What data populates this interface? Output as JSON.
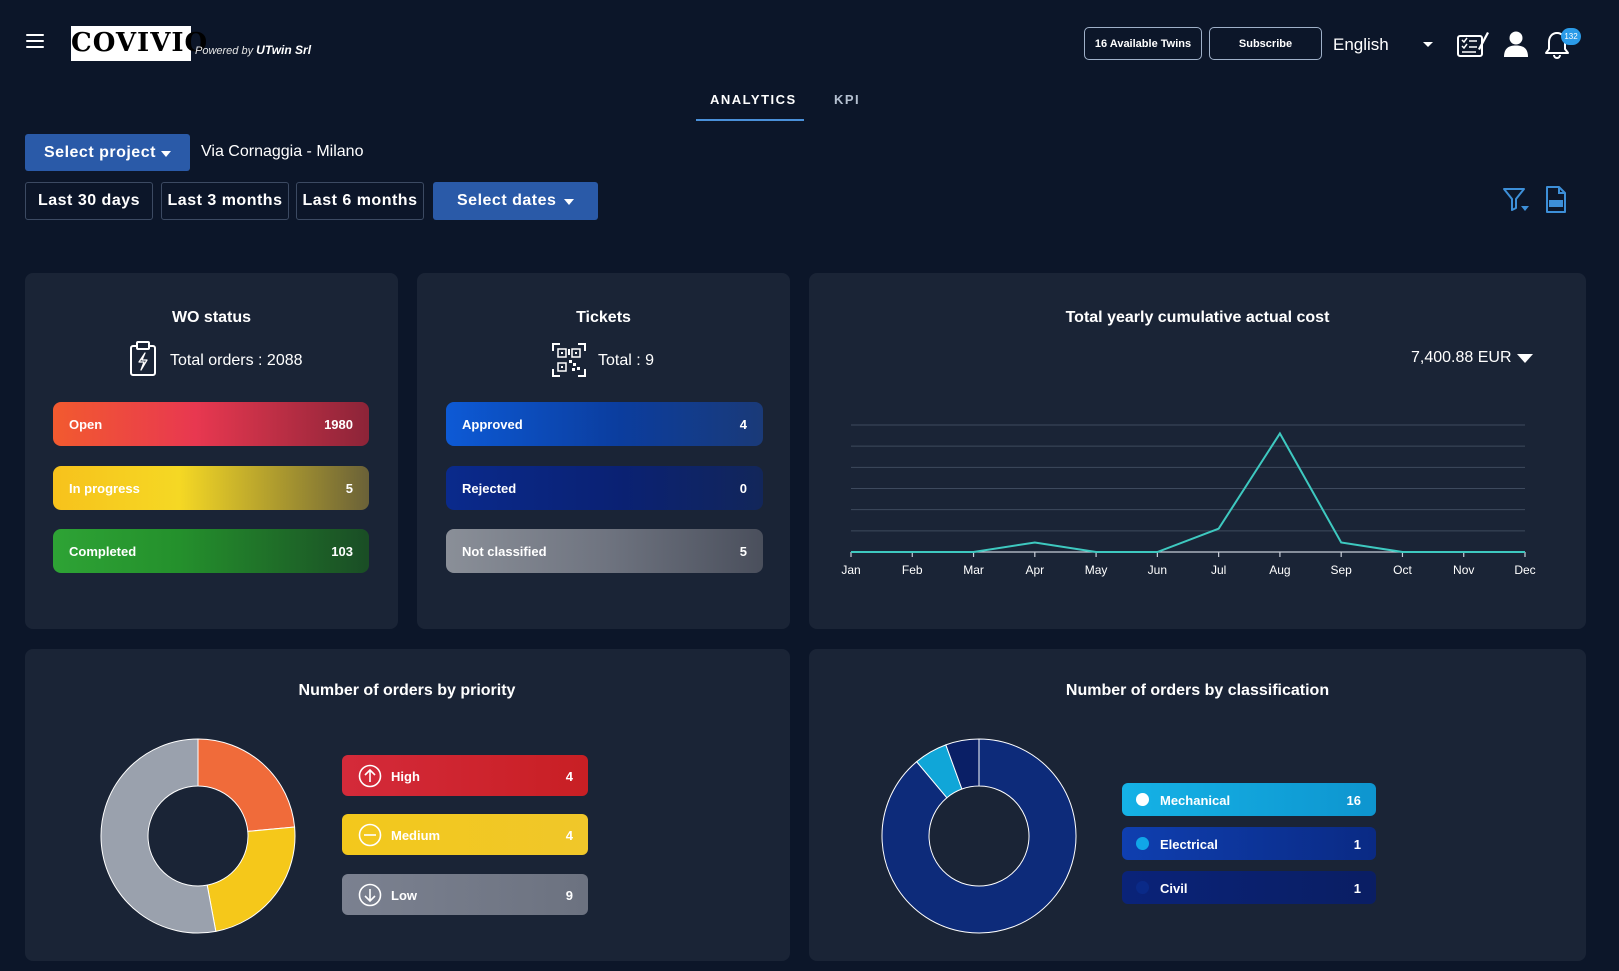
{
  "header": {
    "logo_text": "COVIVIO",
    "powered_prefix": "Powered by",
    "powered_company": "UTwin Srl",
    "twins_button": "16 Available Twins",
    "subscribe_button": "Subscribe",
    "language": "English",
    "notification_count": "132",
    "icons": [
      "menu-icon",
      "checklist-icon",
      "user-icon",
      "bell-icon"
    ]
  },
  "tabs": [
    {
      "label": "ANALYTICS",
      "active": true
    },
    {
      "label": "KPI",
      "active": false
    }
  ],
  "controls": {
    "select_project": "Select project",
    "project_name": "Via Cornaggia - Milano",
    "ranges": [
      "Last 30 days",
      "Last 3 months",
      "Last 6 months"
    ],
    "select_dates": "Select dates",
    "icons": [
      "filter-icon",
      "pdf-export-icon"
    ]
  },
  "wo_status": {
    "title": "WO status",
    "total_label": "Total orders : 2088",
    "items": [
      {
        "label": "Open",
        "value": "1980"
      },
      {
        "label": "In progress",
        "value": "5"
      },
      {
        "label": "Completed",
        "value": "103"
      }
    ]
  },
  "tickets": {
    "title": "Tickets",
    "total_label": "Total : 9",
    "items": [
      {
        "label": "Approved",
        "value": "4"
      },
      {
        "label": "Rejected",
        "value": "0"
      },
      {
        "label": "Not classified",
        "value": "5"
      }
    ]
  },
  "cost": {
    "title": "Total yearly cumulative actual cost",
    "value": "7,400.88 EUR"
  },
  "priority": {
    "title": "Number of orders by priority",
    "items": [
      {
        "label": "High",
        "value": "4"
      },
      {
        "label": "Medium",
        "value": "4"
      },
      {
        "label": "Low",
        "value": "9"
      }
    ]
  },
  "classification": {
    "title": "Number of orders by classification",
    "items": [
      {
        "label": "Mechanical",
        "value": "16"
      },
      {
        "label": "Electrical",
        "value": "1"
      },
      {
        "label": "Civil",
        "value": "1"
      }
    ]
  },
  "colors": {
    "background": "#0c1629",
    "card": "#1a2436",
    "accent": "#2a5aa8",
    "line": "#3ec9c0"
  },
  "chart_data": [
    {
      "type": "line",
      "title": "Total yearly cumulative actual cost",
      "categories": [
        "Jan",
        "Feb",
        "Mar",
        "Apr",
        "May",
        "Jun",
        "Jul",
        "Aug",
        "Sep",
        "Oct",
        "Nov",
        "Dec"
      ],
      "values": [
        0,
        0,
        0,
        450,
        0,
        0,
        1100,
        5600,
        450,
        0,
        0,
        0
      ],
      "ylim": [
        0,
        6000
      ],
      "grid": true
    },
    {
      "type": "pie",
      "title": "Number of orders by priority",
      "categories": [
        "High",
        "Medium",
        "Low"
      ],
      "values": [
        4,
        4,
        9
      ],
      "colors": [
        "#f06b3a",
        "#f5c81a",
        "#9aa1ad"
      ]
    },
    {
      "type": "pie",
      "title": "Number of orders by classification",
      "categories": [
        "Mechanical",
        "Electrical",
        "Civil"
      ],
      "values": [
        16,
        1,
        1
      ],
      "colors": [
        "#0d2b7a",
        "#10a6d8",
        "#0a1f66"
      ]
    }
  ]
}
